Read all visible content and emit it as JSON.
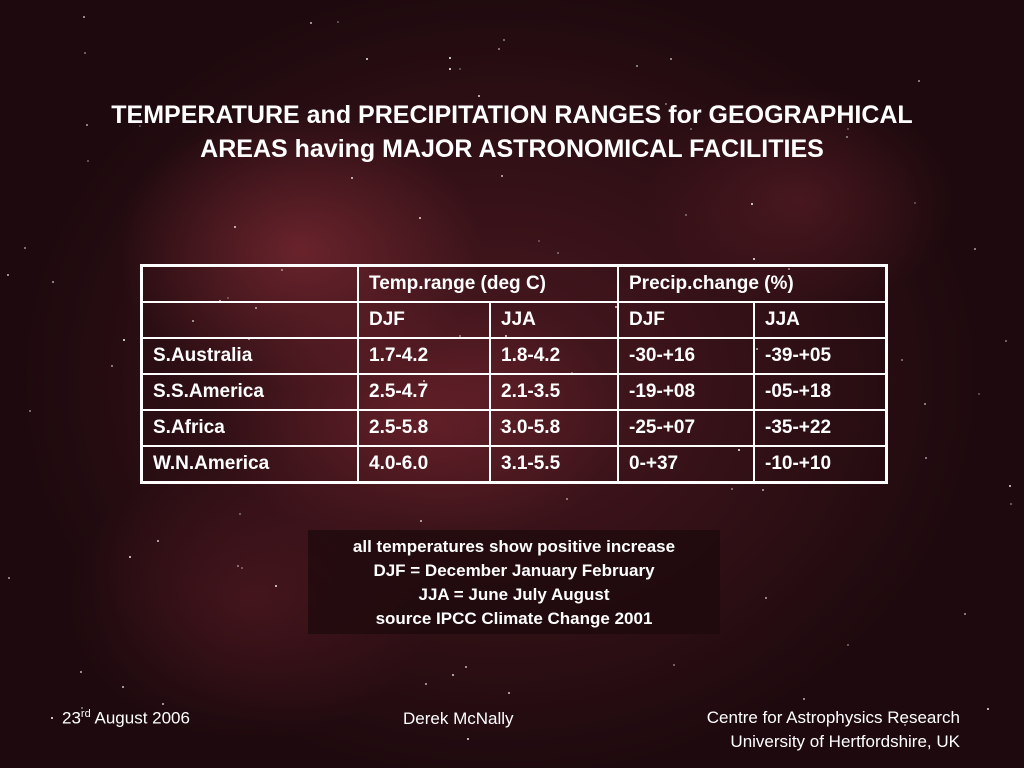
{
  "title": {
    "lines": [
      "TEMPERATURE and PRECIPITATION RANGES for GEOGRAPHICAL",
      "AREAS having MAJOR ASTRONOMICAL FACILITIES"
    ]
  },
  "table": {
    "groups": [
      "Temp.range (deg C)",
      "Precip.change (%)"
    ],
    "subheaders": [
      "DJF",
      "JJA",
      "DJF",
      "JJA"
    ],
    "rows": [
      {
        "region": "S.Australia",
        "values": [
          "1.7-4.2",
          "1.8-4.2",
          "-30-+16",
          "-39-+05"
        ]
      },
      {
        "region": "S.S.America",
        "values": [
          "2.5-4.7",
          "2.1-3.5",
          "-19-+08",
          "-05-+18"
        ]
      },
      {
        "region": "S.Africa",
        "values": [
          "2.5-5.8",
          "3.0-5.8",
          "-25-+07",
          "-35-+22"
        ]
      },
      {
        "region": "W.N.America",
        "values": [
          "4.0-6.0",
          "3.1-5.5",
          "0-+37",
          "-10-+10"
        ]
      }
    ]
  },
  "notes": [
    "all temperatures show positive increase",
    "DJF = December January February",
    "JJA = June July August",
    "source IPCC Climate Change 2001"
  ],
  "footer": {
    "date": {
      "day": "23",
      "suffix": "rd",
      "rest": " August 2006"
    },
    "author": "Derek McNally",
    "institution": [
      "Centre for Astrophysics Research",
      "University of Hertfordshire, UK"
    ]
  }
}
